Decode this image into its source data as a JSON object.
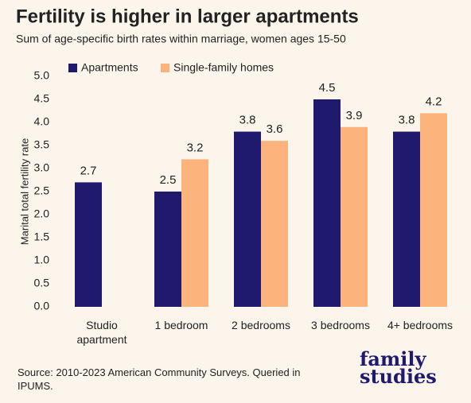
{
  "chart_data": {
    "type": "bar",
    "title": "Fertility is higher in larger apartments",
    "subtitle": "Sum of age-specific birth rates within marriage, women ages 15-50",
    "y_label": "Marital total fertility rate",
    "categories": [
      "Studio apartment",
      "1 bedroom",
      "2 bedrooms",
      "3 bedrooms",
      "4+ bedrooms"
    ],
    "series": [
      {
        "name": "Apartments",
        "color": "#1f1a6e",
        "values": [
          2.7,
          2.5,
          3.8,
          4.5,
          3.8
        ]
      },
      {
        "name": "Single-family homes",
        "color": "#fdb47c",
        "values": [
          null,
          3.2,
          3.6,
          3.9,
          4.2
        ]
      }
    ],
    "ylim": [
      0,
      5
    ],
    "yticks": [
      {
        "value": 0,
        "label": "0.0"
      },
      {
        "value": 0.5,
        "label": "0.5"
      },
      {
        "value": 1,
        "label": "1.0"
      },
      {
        "value": 1.5,
        "label": "1.5"
      },
      {
        "value": 2,
        "label": "2.0"
      },
      {
        "value": 2.5,
        "label": "2.5"
      },
      {
        "value": 3,
        "label": "3.0"
      },
      {
        "value": 3.5,
        "label": "3.5"
      },
      {
        "value": 4,
        "label": "4.0"
      },
      {
        "value": 4.5,
        "label": "4.5"
      },
      {
        "value": 5,
        "label": "5.0"
      }
    ],
    "legend": "top-left",
    "source": "Source: 2010-2023 American Community Surveys. Queried in IPUMS.",
    "logo": [
      "family",
      "studies"
    ]
  }
}
